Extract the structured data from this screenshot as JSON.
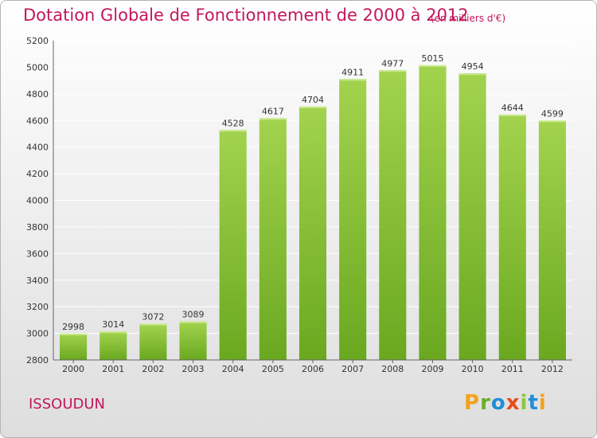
{
  "chart_data": {
    "type": "bar",
    "title": "Dotation Globale de Fonctionnement de 2000 à 2012",
    "subtitle": "(en milliers d'€)",
    "categories": [
      "2000",
      "2001",
      "2002",
      "2003",
      "2004",
      "2005",
      "2006",
      "2007",
      "2008",
      "2009",
      "2010",
      "2011",
      "2012"
    ],
    "values": [
      2998,
      3014,
      3072,
      3089,
      4528,
      4617,
      4704,
      4911,
      4977,
      5015,
      4954,
      4644,
      4599
    ],
    "ylim": [
      2800,
      5200
    ],
    "yticks": [
      2800,
      3000,
      3200,
      3400,
      3600,
      3800,
      4000,
      4200,
      4400,
      4600,
      4800,
      5000,
      5200
    ],
    "grid": true,
    "bar_color": "#7cb82f",
    "bar_color_light": "#9fd24a"
  },
  "footer": {
    "commune": "ISSOUDUN",
    "brand": [
      "P",
      "r",
      "o",
      "x",
      "i",
      "t",
      "i"
    ]
  },
  "colors": {
    "title": "#c2185b",
    "grid": "#ffffff",
    "text": "#333333"
  }
}
